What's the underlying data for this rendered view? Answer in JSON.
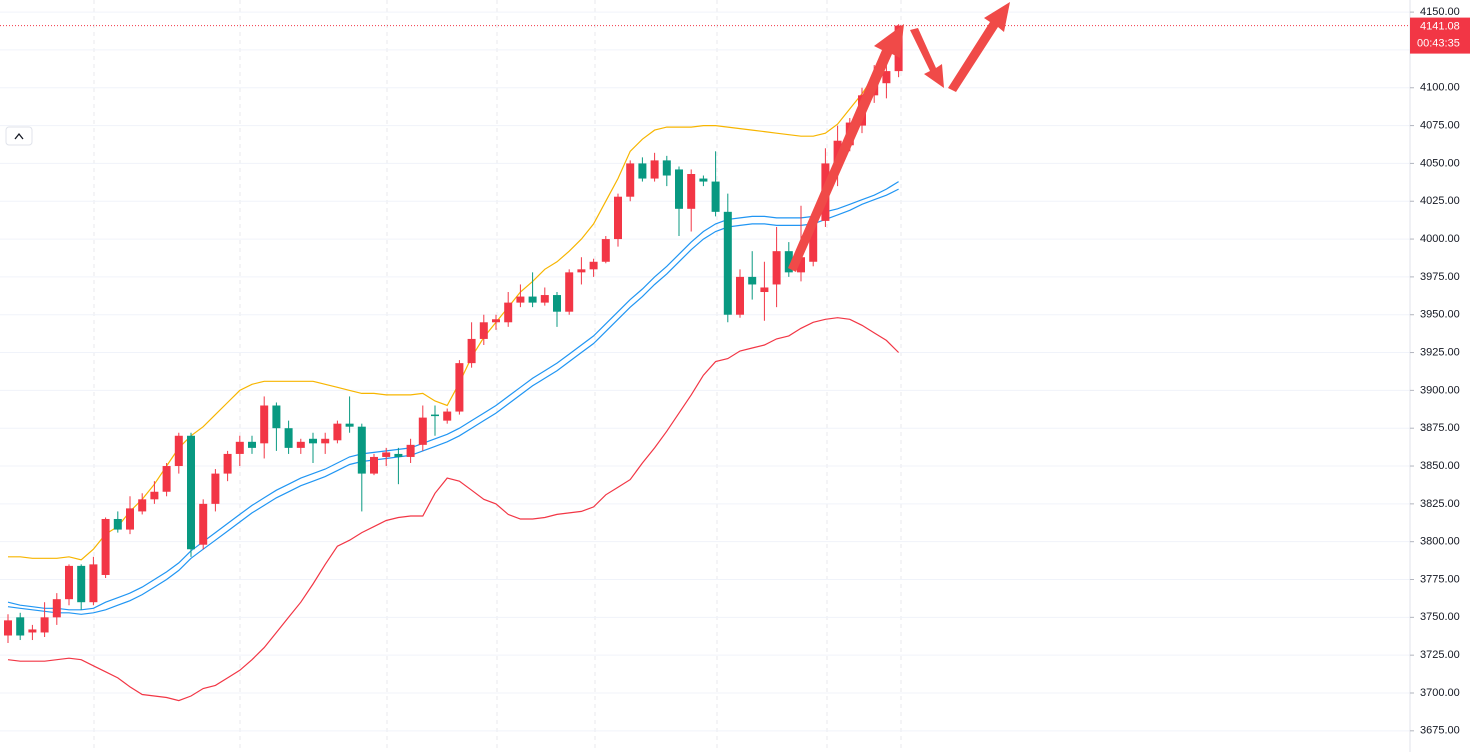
{
  "chart_data": {
    "type": "candlestick",
    "up_color": "#f23645",
    "down_color": "#089981",
    "ylim": [
      3661,
      4158
    ],
    "yticks": [
      {
        "value": 4150,
        "label": "4150.00"
      },
      {
        "value": 4125,
        "label": "4125.00"
      },
      {
        "value": 4100,
        "label": "4100.00"
      },
      {
        "value": 4075,
        "label": "4075.00"
      },
      {
        "value": 4050,
        "label": "4050.00"
      },
      {
        "value": 4025,
        "label": "4025.00"
      },
      {
        "value": 4000,
        "label": "4000.00"
      },
      {
        "value": 3975,
        "label": "3975.00"
      },
      {
        "value": 3950,
        "label": "3950.00"
      },
      {
        "value": 3925,
        "label": "3925.00"
      },
      {
        "value": 3900,
        "label": "3900.00"
      },
      {
        "value": 3875,
        "label": "3875.00"
      },
      {
        "value": 3850,
        "label": "3850.00"
      },
      {
        "value": 3825,
        "label": "3825.00"
      },
      {
        "value": 3800,
        "label": "3800.00"
      },
      {
        "value": 3775,
        "label": "3775.00"
      },
      {
        "value": 3750,
        "label": "3750.00"
      },
      {
        "value": 3725,
        "label": "3725.00"
      },
      {
        "value": 3700,
        "label": "3700.00"
      },
      {
        "value": 3675,
        "label": "3675.00"
      }
    ],
    "grid": true,
    "open": [
      3738,
      3750,
      3740,
      3740,
      3750,
      3762,
      3784,
      3760,
      3778,
      3815,
      3808,
      3820,
      3828,
      3833,
      3850,
      3870,
      3798,
      3825,
      3845,
      3858,
      3866,
      3865,
      3890,
      3875,
      3862,
      3868,
      3865,
      3867,
      3878,
      3876,
      3845,
      3856,
      3858,
      3856,
      3864,
      3884,
      3880,
      3886,
      3918,
      3934,
      3945,
      3945,
      3958,
      3962,
      3958,
      3963,
      3952,
      3978,
      3980,
      3985,
      4000,
      4028,
      4050,
      4040,
      4052,
      4046,
      4020,
      4040,
      4038,
      4018,
      3950,
      3975,
      3965,
      3970,
      3992,
      3978,
      3985,
      4012,
      4050,
      4062,
      4075,
      4095,
      4103,
      4111
    ],
    "high": [
      3752,
      3753,
      3745,
      3760,
      3766,
      3785,
      3785,
      3790,
      3816,
      3820,
      3830,
      3832,
      3840,
      3852,
      3872,
      3872,
      3828,
      3848,
      3860,
      3870,
      3870,
      3896,
      3892,
      3880,
      3868,
      3872,
      3872,
      3880,
      3896,
      3878,
      3858,
      3862,
      3862,
      3868,
      3890,
      3890,
      3888,
      3920,
      3945,
      3950,
      3950,
      3965,
      3970,
      3978,
      3968,
      3965,
      3980,
      3988,
      3987,
      4002,
      4030,
      4052,
      4054,
      4057,
      4055,
      4048,
      4046,
      4042,
      4058,
      4030,
      3980,
      3992,
      3985,
      4008,
      3998,
      4022,
      4012,
      4060,
      4075,
      4080,
      4100,
      4115,
      4118,
      4142
    ],
    "low": [
      3733,
      3735,
      3735,
      3737,
      3745,
      3758,
      3755,
      3758,
      3776,
      3806,
      3805,
      3818,
      3825,
      3830,
      3845,
      3790,
      3795,
      3820,
      3840,
      3850,
      3858,
      3855,
      3860,
      3858,
      3858,
      3852,
      3858,
      3865,
      3872,
      3820,
      3844,
      3850,
      3838,
      3852,
      3860,
      3870,
      3878,
      3884,
      3915,
      3930,
      3940,
      3942,
      3955,
      3955,
      3956,
      3942,
      3950,
      3970,
      3975,
      3984,
      3995,
      4025,
      4038,
      4038,
      4035,
      4002,
      4005,
      4035,
      4015,
      3945,
      3948,
      3960,
      3946,
      3955,
      3975,
      3972,
      3982,
      4008,
      4035,
      4058,
      4070,
      4090,
      4093,
      4107
    ],
    "close": [
      3748,
      3738,
      3742,
      3750,
      3762,
      3784,
      3760,
      3785,
      3815,
      3808,
      3822,
      3828,
      3833,
      3850,
      3870,
      3795,
      3825,
      3845,
      3858,
      3866,
      3862,
      3890,
      3875,
      3862,
      3866,
      3865,
      3868,
      3878,
      3876,
      3845,
      3856,
      3859,
      3856,
      3864,
      3882,
      3883,
      3886,
      3918,
      3934,
      3945,
      3947,
      3958,
      3962,
      3958,
      3963,
      3952,
      3978,
      3980,
      3985,
      4000,
      4028,
      4050,
      4040,
      4052,
      4042,
      4020,
      4043,
      4038,
      4018,
      3950,
      3975,
      3970,
      3968,
      3992,
      3978,
      3988,
      4010,
      4050,
      4065,
      4077,
      4095,
      4103,
      4111,
      4141.08
    ],
    "lines": [
      {
        "color": "#f7b500",
        "values": [
          3790,
          3790,
          3789,
          3789,
          3789,
          3790,
          3788,
          3795,
          3805,
          3810,
          3820,
          3828,
          3838,
          3850,
          3862,
          3870,
          3876,
          3884,
          3892,
          3900,
          3904,
          3906,
          3906,
          3906,
          3906,
          3906,
          3904,
          3902,
          3900,
          3898,
          3898,
          3897,
          3897,
          3897,
          3898,
          3893,
          3890,
          3905,
          3922,
          3935,
          3945,
          3955,
          3965,
          3972,
          3980,
          3985,
          3992,
          4000,
          4010,
          4025,
          4040,
          4058,
          4066,
          4072,
          4074,
          4074,
          4074,
          4075,
          4075,
          4074,
          4073,
          4072,
          4071,
          4070,
          4069,
          4068,
          4068,
          4070,
          4076,
          4086,
          4096,
          4108,
          4120,
          4133
        ]
      },
      {
        "color": "#2196f3",
        "values": [
          3760,
          3758,
          3757,
          3756,
          3756,
          3755,
          3755,
          3756,
          3760,
          3763,
          3766,
          3770,
          3775,
          3780,
          3786,
          3794,
          3800,
          3806,
          3812,
          3818,
          3824,
          3829,
          3834,
          3838,
          3842,
          3845,
          3848,
          3852,
          3856,
          3858,
          3859,
          3860,
          3861,
          3862,
          3865,
          3868,
          3871,
          3875,
          3880,
          3885,
          3890,
          3896,
          3902,
          3908,
          3913,
          3918,
          3924,
          3930,
          3936,
          3944,
          3952,
          3960,
          3967,
          3975,
          3982,
          3990,
          3998,
          4005,
          4010,
          4013,
          4014,
          4015,
          4015,
          4014,
          4014,
          4014,
          4015,
          4018,
          4020,
          4023,
          4026,
          4029,
          4033,
          4038
        ]
      },
      {
        "color": "#2196f3",
        "values": [
          3757,
          3756,
          3755,
          3754,
          3753,
          3753,
          3752,
          3753,
          3755,
          3758,
          3761,
          3765,
          3770,
          3775,
          3781,
          3789,
          3795,
          3801,
          3807,
          3813,
          3819,
          3824,
          3829,
          3833,
          3837,
          3840,
          3843,
          3847,
          3851,
          3853,
          3854,
          3855,
          3856,
          3857,
          3860,
          3863,
          3866,
          3870,
          3875,
          3880,
          3885,
          3891,
          3897,
          3903,
          3908,
          3913,
          3919,
          3925,
          3931,
          3939,
          3947,
          3955,
          3962,
          3970,
          3977,
          3985,
          3993,
          4000,
          4005,
          4008,
          4009,
          4010,
          4010,
          4009,
          4009,
          4009,
          4010,
          4013,
          4016,
          4019,
          4023,
          4026,
          4029,
          4033
        ]
      },
      {
        "color": "#f23645",
        "values": [
          3722,
          3721,
          3721,
          3721,
          3722,
          3723,
          3722,
          3718,
          3714,
          3710,
          3704,
          3699,
          3698,
          3697,
          3695,
          3698,
          3703,
          3705,
          3710,
          3715,
          3722,
          3730,
          3740,
          3750,
          3760,
          3772,
          3785,
          3797,
          3801,
          3806,
          3810,
          3814,
          3816,
          3817,
          3817,
          3832,
          3842,
          3840,
          3834,
          3828,
          3825,
          3818,
          3815,
          3815,
          3816,
          3818,
          3819,
          3820,
          3823,
          3831,
          3836,
          3841,
          3852,
          3862,
          3873,
          3885,
          3897,
          3910,
          3919,
          3921,
          3926,
          3928,
          3930,
          3934,
          3936,
          3941,
          3945,
          3947,
          3948,
          3947,
          3943,
          3938,
          3933,
          3925
        ]
      }
    ],
    "last_price": 4141.08,
    "countdown": "00:43:35"
  }
}
